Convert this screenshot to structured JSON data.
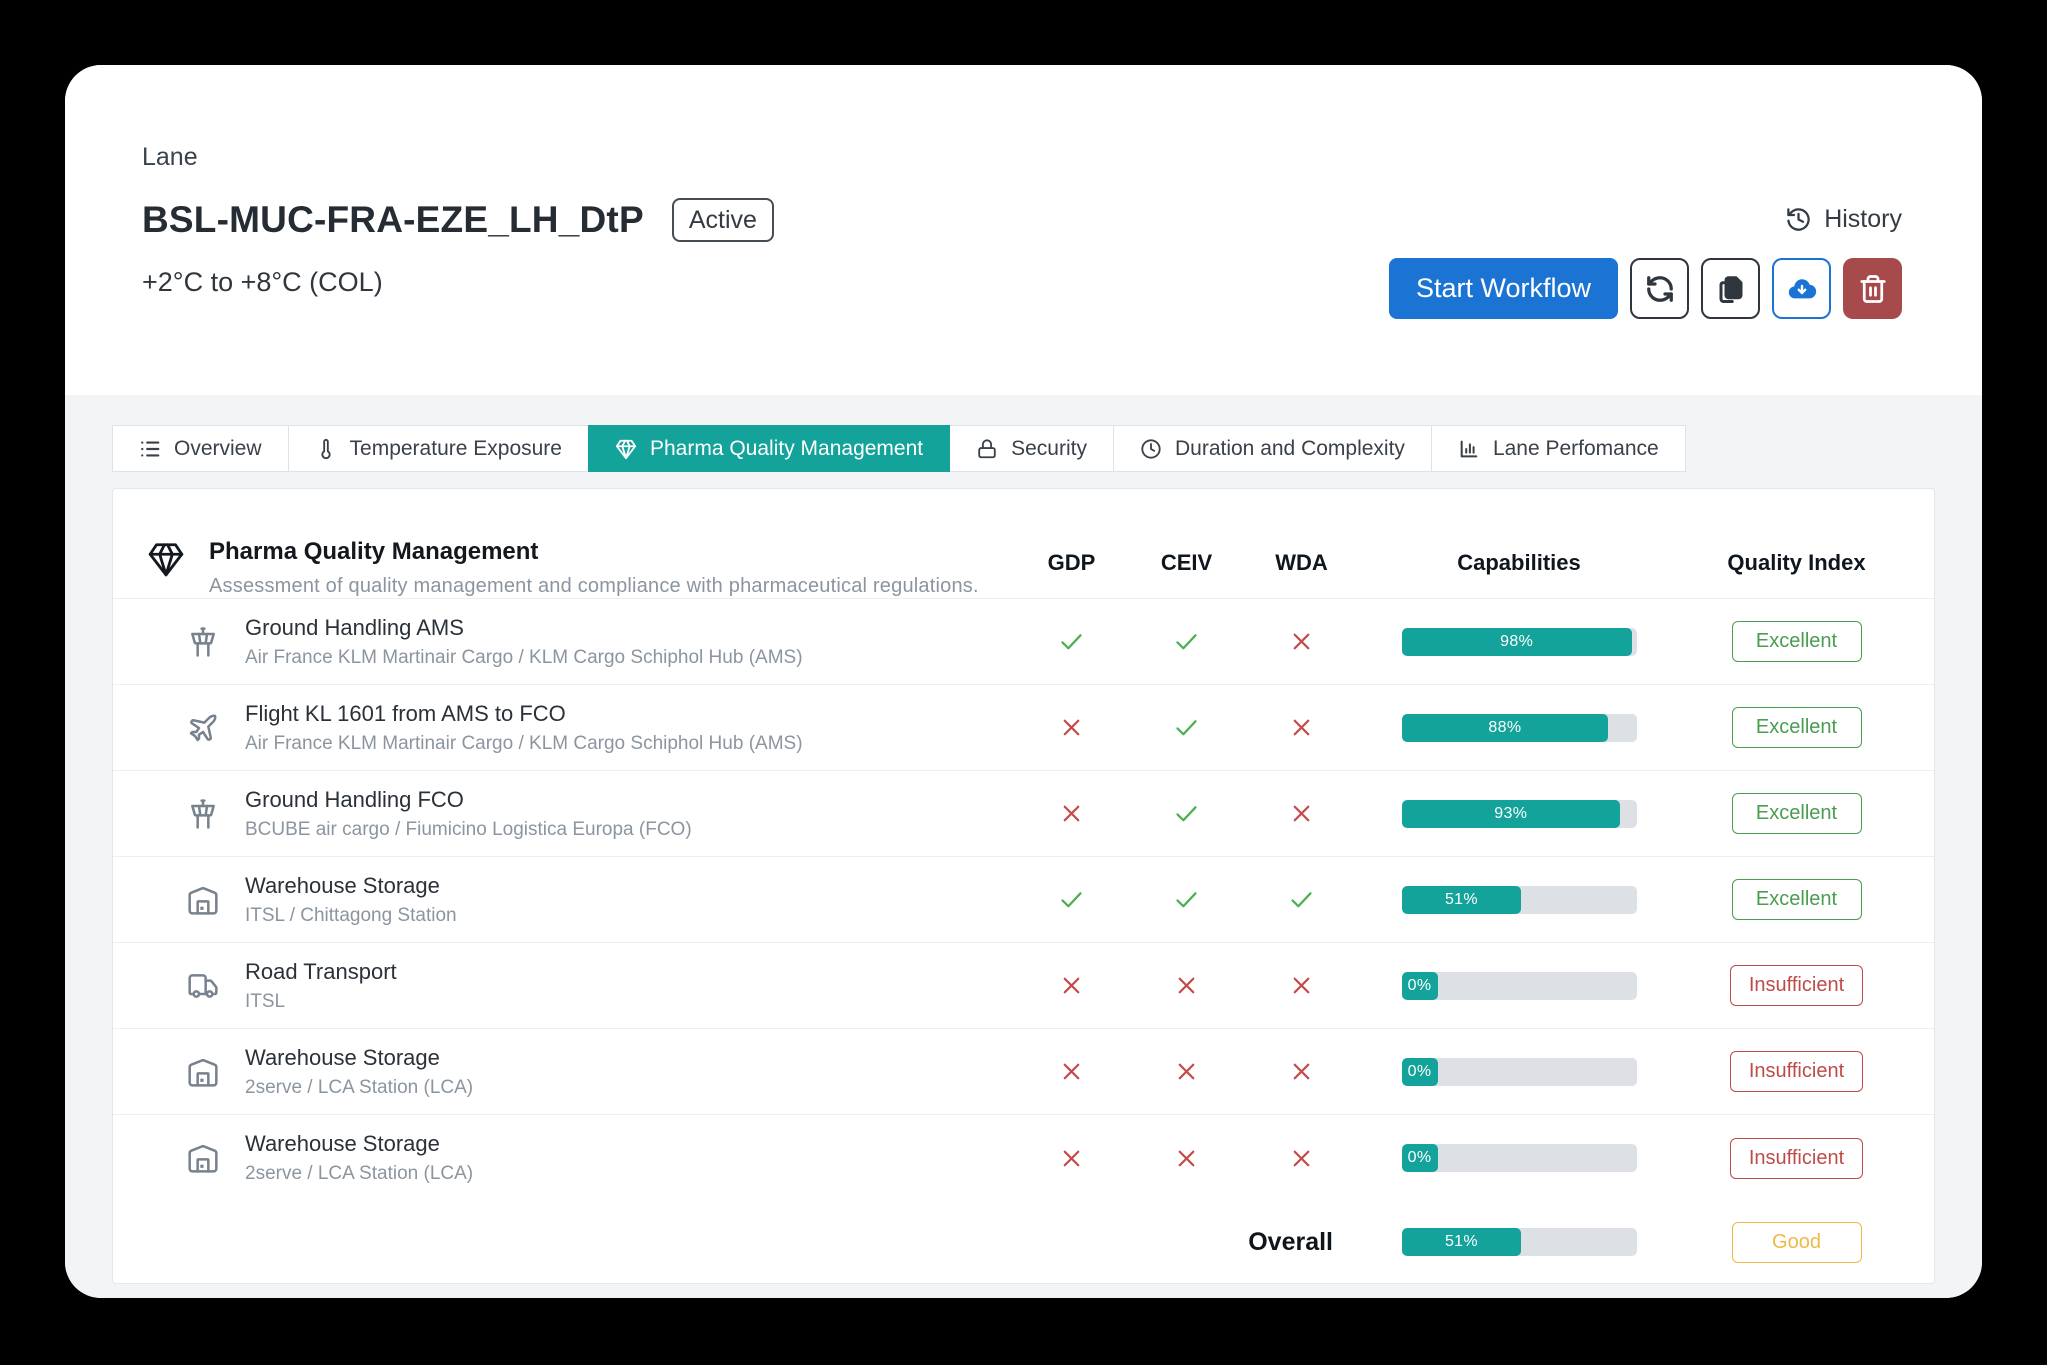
{
  "header": {
    "eyebrow": "Lane",
    "title": "BSL-MUC-FRA-EZE_LH_DtP",
    "status_badge": "Active",
    "temperature_range": "+2°C to +8°C (COL)",
    "history_label": "History",
    "actions": {
      "start_workflow_label": "Start Workflow",
      "icons": [
        "refresh-icon",
        "copy-icon",
        "cloud-download-icon",
        "trash-icon"
      ]
    }
  },
  "tabs": [
    {
      "label": "Overview",
      "icon": "list-icon",
      "active": false
    },
    {
      "label": "Temperature Exposure",
      "icon": "thermometer-icon",
      "active": false
    },
    {
      "label": "Pharma Quality Management",
      "icon": "gem-icon",
      "active": true
    },
    {
      "label": "Security",
      "icon": "lock-icon",
      "active": false
    },
    {
      "label": "Duration and Complexity",
      "icon": "clock-icon",
      "active": false
    },
    {
      "label": "Lane Perfomance",
      "icon": "bar-chart-icon",
      "active": false
    }
  ],
  "section": {
    "title": "Pharma Quality Management",
    "subtitle": "Assessment of quality management and compliance with pharmaceutical regulations."
  },
  "table": {
    "columns": [
      "GDP",
      "CEIV",
      "WDA",
      "Capabilities",
      "Quality Index"
    ],
    "rows": [
      {
        "icon": "tower",
        "title": "Ground Handling AMS",
        "subtitle": "Air France KLM Martinair Cargo / KLM Cargo Schiphol Hub (AMS)",
        "gdp": true,
        "ceiv": true,
        "wda": false,
        "capability_pct": 98,
        "capability_label": "98%",
        "quality": "Excellent",
        "quality_tone": "green"
      },
      {
        "icon": "plane",
        "title": "Flight KL 1601 from AMS to FCO",
        "subtitle": "Air France KLM Martinair Cargo / KLM Cargo Schiphol Hub (AMS)",
        "gdp": false,
        "ceiv": true,
        "wda": false,
        "capability_pct": 88,
        "capability_label": "88%",
        "quality": "Excellent",
        "quality_tone": "green"
      },
      {
        "icon": "tower",
        "title": "Ground Handling FCO",
        "subtitle": "BCUBE air cargo / Fiumicino Logistica Europa (FCO)",
        "gdp": false,
        "ceiv": true,
        "wda": false,
        "capability_pct": 93,
        "capability_label": "93%",
        "quality": "Excellent",
        "quality_tone": "green"
      },
      {
        "icon": "warehouse",
        "title": "Warehouse Storage",
        "subtitle": "ITSL / Chittagong Station",
        "gdp": true,
        "ceiv": true,
        "wda": true,
        "capability_pct": 51,
        "capability_label": "51%",
        "quality": "Excellent",
        "quality_tone": "green"
      },
      {
        "icon": "truck",
        "title": "Road Transport",
        "subtitle": "ITSL",
        "gdp": false,
        "ceiv": false,
        "wda": false,
        "capability_pct": 0,
        "capability_label": "0%",
        "quality": "Insufficient",
        "quality_tone": "red"
      },
      {
        "icon": "warehouse",
        "title": "Warehouse Storage",
        "subtitle": "2serve / LCA Station (LCA)",
        "gdp": false,
        "ceiv": false,
        "wda": false,
        "capability_pct": 0,
        "capability_label": "0%",
        "quality": "Insufficient",
        "quality_tone": "red"
      },
      {
        "icon": "warehouse",
        "title": "Warehouse Storage",
        "subtitle": "2serve / LCA Station (LCA)",
        "gdp": false,
        "ceiv": false,
        "wda": false,
        "capability_pct": 0,
        "capability_label": "0%",
        "quality": "Insufficient",
        "quality_tone": "red"
      }
    ],
    "overall": {
      "label": "Overall",
      "capability_pct": 51,
      "capability_label": "51%",
      "quality": "Good",
      "quality_tone": "amber"
    }
  },
  "colors": {
    "accent_teal": "#14a39a",
    "primary_blue": "#1b74d3",
    "success_green": "#4caf50",
    "danger_red": "#c34a48",
    "warning_amber": "#efb945",
    "delete_red": "#a64a4c"
  }
}
